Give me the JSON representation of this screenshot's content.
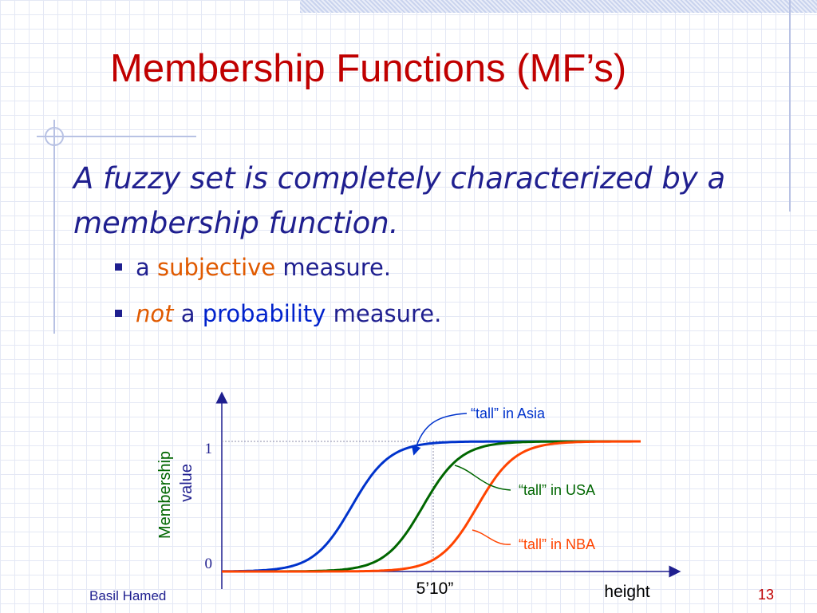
{
  "slide": {
    "title": "Membership Functions (MF’s)",
    "body": "A fuzzy set is completely characterized by a membership function.",
    "bullets": [
      {
        "pre": "a ",
        "highlight": "subjective",
        "post": " measure."
      },
      {
        "pre_highlight": "not",
        "mid": " a ",
        "highlight": "probability",
        "post": " measure."
      }
    ],
    "footer": {
      "author": "Basil Hamed",
      "page": "13"
    }
  },
  "chart_data": {
    "type": "line",
    "ylabel_line1": "Membership",
    "ylabel_line2": "value",
    "xlabel": "height",
    "y_ticks": [
      "1",
      "0"
    ],
    "x_marker": "5’10”",
    "series": [
      {
        "name": "“tall” in Asia",
        "color": "#0033cc",
        "center": 0.31,
        "steepness": 22
      },
      {
        "name": "“tall” in USA",
        "color": "#006600",
        "center": 0.48,
        "steepness": 22
      },
      {
        "name": "“tall” in NBA",
        "color": "#ff4400",
        "center": 0.61,
        "steepness": 22
      }
    ]
  }
}
